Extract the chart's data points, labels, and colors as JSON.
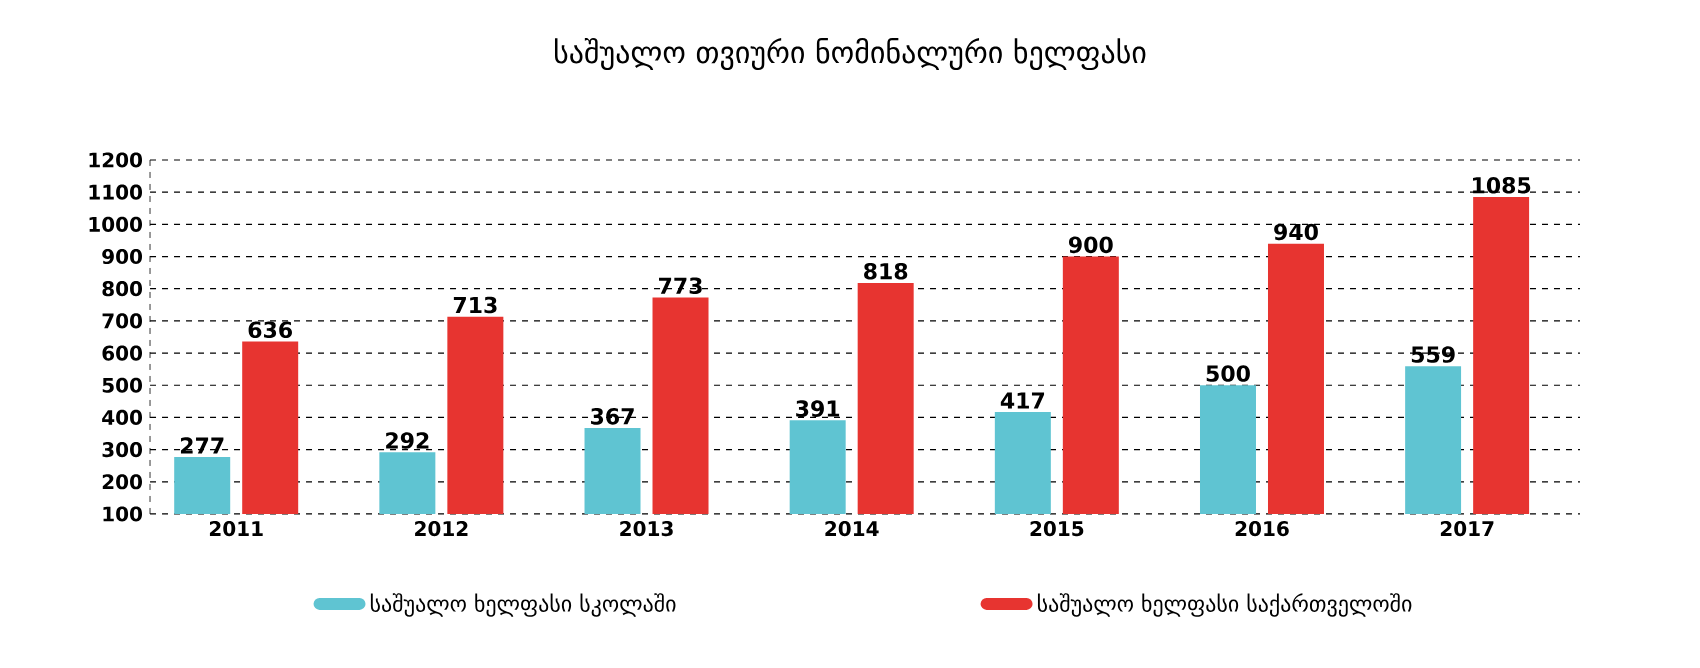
{
  "chart_data": {
    "type": "bar",
    "title": "საშუალო თვიური ნომინალური ხელფასი",
    "categories": [
      "2011",
      "2012",
      "2013",
      "2014",
      "2015",
      "2016",
      "2017"
    ],
    "series": [
      {
        "name": "საშუალო ხელფასი სკოლაში",
        "color": "#5fc4d2",
        "values": [
          277,
          292,
          367,
          391,
          417,
          500,
          559
        ]
      },
      {
        "name": "საშუალო ხელფასი საქართველოში",
        "color": "#e73430",
        "values": [
          636,
          713,
          773,
          818,
          900,
          940,
          1085
        ]
      }
    ],
    "ylim": [
      100,
      1200
    ],
    "yticks": [
      100,
      200,
      300,
      400,
      500,
      600,
      700,
      800,
      900,
      1000,
      1100,
      1200
    ],
    "grid": "y",
    "legend": "bottom",
    "data_labels": true
  }
}
